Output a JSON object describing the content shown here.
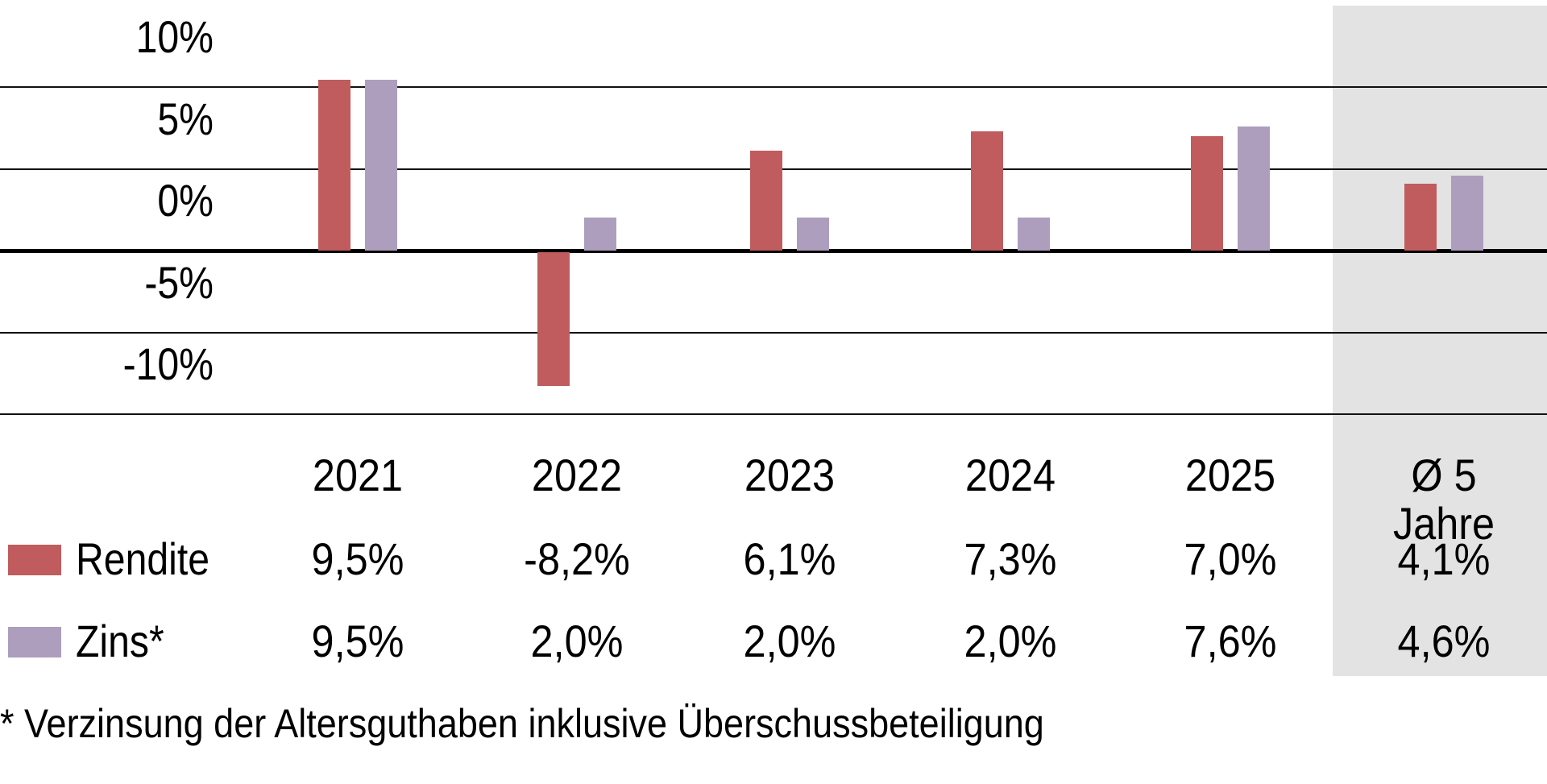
{
  "chart_data": {
    "type": "bar",
    "title": "",
    "xlabel": "",
    "ylabel": "",
    "ylim": [
      -10,
      10
    ],
    "yticks": [
      "10%",
      "5%",
      "0%",
      "-5%",
      "-10%"
    ],
    "grid": true,
    "categories": [
      "2021",
      "2022",
      "2023",
      "2024",
      "2025",
      "Ø 5 Jahre"
    ],
    "series": [
      {
        "name": "Rendite",
        "color": "#c05c5d",
        "values": [
          9.5,
          -8.2,
          6.1,
          7.3,
          7.0,
          4.1
        ],
        "labels": [
          "9,5%",
          "-8,2%",
          "6,1%",
          "7,3%",
          "7,0%",
          "4,1%"
        ]
      },
      {
        "name": "Zins*",
        "color": "#ae9ebd",
        "values": [
          9.5,
          2.0,
          2.0,
          2.0,
          7.6,
          4.6
        ],
        "labels": [
          "9,5%",
          "2,0%",
          "2,0%",
          "2,0%",
          "7,6%",
          "4,6%"
        ]
      }
    ],
    "highlight_category": "Ø 5 Jahre",
    "highlight_color": "#e3e3e3",
    "legend_position": "table-left",
    "footnote": "* Verzinsung der Altersguthaben inklusive Überschussbeteiligung"
  }
}
